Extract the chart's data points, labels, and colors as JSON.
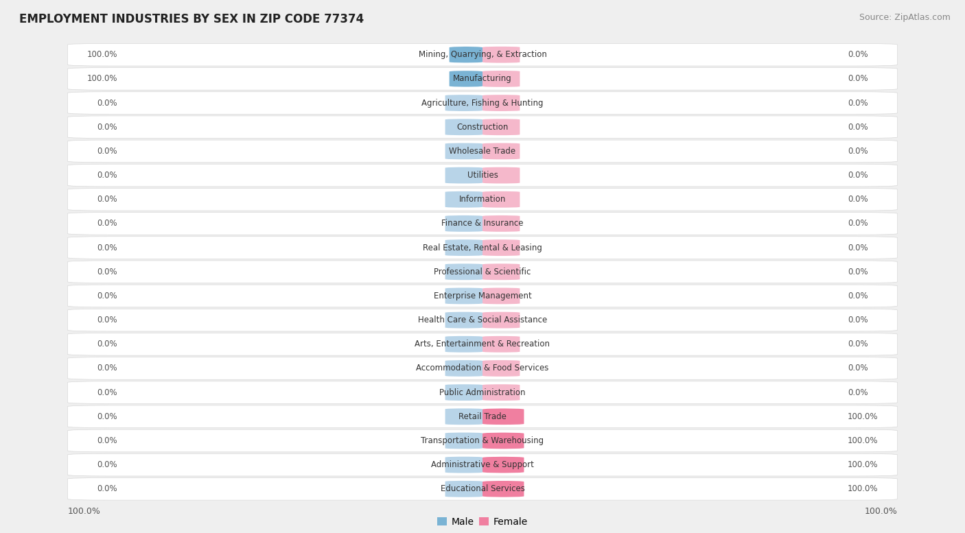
{
  "title": "EMPLOYMENT INDUSTRIES BY SEX IN ZIP CODE 77374",
  "source": "Source: ZipAtlas.com",
  "industries": [
    "Mining, Quarrying, & Extraction",
    "Manufacturing",
    "Agriculture, Fishing & Hunting",
    "Construction",
    "Wholesale Trade",
    "Utilities",
    "Information",
    "Finance & Insurance",
    "Real Estate, Rental & Leasing",
    "Professional & Scientific",
    "Enterprise Management",
    "Health Care & Social Assistance",
    "Arts, Entertainment & Recreation",
    "Accommodation & Food Services",
    "Public Administration",
    "Retail Trade",
    "Transportation & Warehousing",
    "Administrative & Support",
    "Educational Services"
  ],
  "male_pct": [
    100.0,
    100.0,
    0.0,
    0.0,
    0.0,
    0.0,
    0.0,
    0.0,
    0.0,
    0.0,
    0.0,
    0.0,
    0.0,
    0.0,
    0.0,
    0.0,
    0.0,
    0.0,
    0.0
  ],
  "female_pct": [
    0.0,
    0.0,
    0.0,
    0.0,
    0.0,
    0.0,
    0.0,
    0.0,
    0.0,
    0.0,
    0.0,
    0.0,
    0.0,
    0.0,
    0.0,
    100.0,
    100.0,
    100.0,
    100.0
  ],
  "male_color": "#7ab3d4",
  "female_color": "#f07fa0",
  "male_stub_color": "#b8d4e8",
  "female_stub_color": "#f5b8cb",
  "bg_color": "#efefef",
  "row_bg": "#ffffff",
  "row_alt_bg": "#f7f7f7",
  "title_color": "#222222",
  "text_color": "#555555",
  "label_fontsize": 8.5,
  "title_fontsize": 12,
  "source_fontsize": 9
}
